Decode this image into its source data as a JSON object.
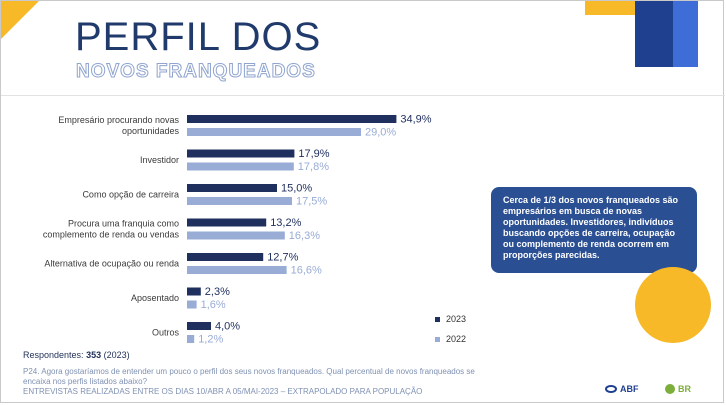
{
  "slide": {
    "title": "PERFIL DOS",
    "subtitle": "NOVOS FRANQUEADOS",
    "callout": "Cerca de 1/3 dos novos franqueados são empresários em busca de novas oportunidades. Investidores, indivíduos buscando opções de carreira, ocupação ou complemento de renda ocorrem em proporções parecidas.",
    "respondents_label": "Respondentes:",
    "respondents_value": "353",
    "respondents_year": "(2023)",
    "question": "P24. Agora gostaríamos de entender um pouco o perfil dos seus novos franqueados. Qual percentual de novos franqueados se encaixa nos perfis listados abaixo?",
    "footnote": "ENTREVISTAS REALIZADAS ENTRE OS DIAS 10/ABR A 05/MAI-2023 – EXTRAPOLADO PARA POPULAÇÃO",
    "logos": {
      "abf": "ABF",
      "br": "BR"
    }
  },
  "colors": {
    "series_2023": "#1f2f5e",
    "series_2022": "#98acd6",
    "accent_yellow": "#f7b928",
    "navy": "#1f3f8f"
  },
  "chart_data": {
    "type": "bar",
    "orientation": "horizontal",
    "categories": [
      [
        "Empresário procurando novas",
        "oportunidades"
      ],
      [
        "Investidor"
      ],
      [
        "Como opção de carreira"
      ],
      [
        "Procura uma franquia como",
        "complemento de renda ou vendas"
      ],
      [
        "Alternativa de ocupação ou renda"
      ],
      [
        "Aposentado"
      ],
      [
        "Outros"
      ]
    ],
    "series": [
      {
        "name": "2023",
        "values": [
          34.9,
          17.9,
          15.0,
          13.2,
          12.7,
          2.3,
          4.0
        ],
        "labels": [
          "34,9%",
          "17,9%",
          "15,0%",
          "13,2%",
          "12,7%",
          "2,3%",
          "4,0%"
        ]
      },
      {
        "name": "2022",
        "values": [
          29.0,
          17.8,
          17.5,
          16.3,
          16.6,
          1.6,
          1.2
        ],
        "labels": [
          "29,0%",
          "17,8%",
          "17,5%",
          "16,3%",
          "16,6%",
          "1,6%",
          "1,2%"
        ]
      }
    ],
    "xlim": [
      0,
      40
    ],
    "grid": false,
    "legend": "bottom-right"
  }
}
